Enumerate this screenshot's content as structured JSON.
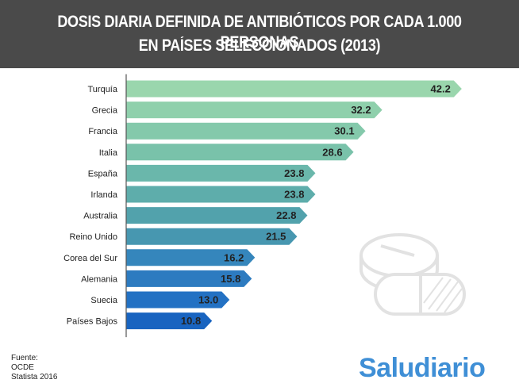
{
  "header": {
    "title_line1": "DOSIS DIARIA DEFINIDA DE ANTIBIÓTICOS POR CADA 1.000 PERSONAS",
    "title_line2": "EN PAÍSES SELECCIONADOS (2013)"
  },
  "chart_data": {
    "type": "bar",
    "orientation": "horizontal",
    "categories": [
      "Turquía",
      "Grecia",
      "Francia",
      "Italia",
      "España",
      "Irlanda",
      "Australia",
      "Reino Unido",
      "Corea del Sur",
      "Alemania",
      "Suecia",
      "Países Bajos"
    ],
    "values": [
      42.2,
      32.2,
      30.1,
      28.6,
      23.8,
      23.8,
      22.8,
      21.5,
      16.2,
      15.8,
      13.0,
      10.8
    ],
    "value_labels": [
      "42.2",
      "32.2",
      "30.1",
      "28.6",
      "23.8",
      "23.8",
      "22.8",
      "21.5",
      "16.2",
      "15.8",
      "13.0",
      "10.8"
    ],
    "bar_colors": [
      "#9ad6ad",
      "#8fd0ac",
      "#84c9ab",
      "#79c2aa",
      "#6ab7ab",
      "#5eadab",
      "#52a2ac",
      "#4797b0",
      "#3586bc",
      "#2d7bc0",
      "#2371c3",
      "#1964c0"
    ],
    "xlim": [
      0,
      44
    ],
    "grid": false,
    "legend": "none"
  },
  "footer": {
    "source_label": "Fuente:",
    "source_lines": [
      "OCDE",
      "Statista 2016"
    ],
    "brand": "Saludiario"
  }
}
